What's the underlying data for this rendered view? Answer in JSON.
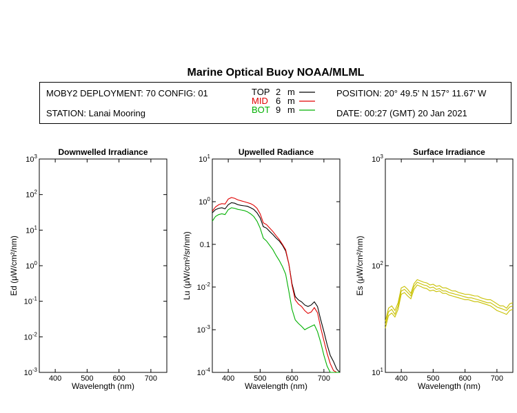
{
  "title": "Marine Optical Buoy NOAA/MLML",
  "header": {
    "deployment": "MOBY2 DEPLOYMENT: 70 CONFIG: 01",
    "station": "STATION: Lanai Mooring",
    "position": "POSITION: 20° 49.5' N   157° 11.67' W",
    "date": "DATE: 00:27 (GMT) 20 Jan 2021"
  },
  "legend": [
    {
      "label": "TOP",
      "depth": "2",
      "unit": "m",
      "color": "#000000"
    },
    {
      "label": "MID",
      "depth": "6",
      "unit": "m",
      "color": "#e00000"
    },
    {
      "label": "BOT",
      "depth": "9",
      "unit": "m",
      "color": "#00b000"
    }
  ],
  "chart_data": [
    {
      "type": "line",
      "title": "Downwelled Irradiance",
      "ylabel": "Ed  (μW/cm²/nm)",
      "xlabel": "Wavelength (nm)",
      "xlim": [
        350,
        750
      ],
      "ylim": [
        0.001,
        1000
      ],
      "yscale": "log",
      "xticks": [
        "400",
        "500",
        "600",
        "700"
      ],
      "yticks": [
        "10-3",
        "10-2",
        "10-1",
        "100",
        "101",
        "102",
        "103"
      ],
      "series": []
    },
    {
      "type": "line",
      "title": "Upwelled Radiance",
      "ylabel": "Lu  (μW/cm²/sr/nm)",
      "xlabel": "Wavelength (nm)",
      "xlim": [
        350,
        750
      ],
      "ylim": [
        0.0001,
        10
      ],
      "yscale": "log",
      "xticks": [
        "400",
        "500",
        "600",
        "700"
      ],
      "yticks": [
        "10-4",
        "10-3",
        "10-2",
        "0.1",
        "100",
        "101"
      ],
      "series": [
        {
          "name": "TOP",
          "color": "#000000",
          "x": [
            350,
            360,
            370,
            380,
            390,
            400,
            410,
            420,
            430,
            440,
            450,
            460,
            470,
            480,
            490,
            500,
            510,
            520,
            530,
            540,
            550,
            560,
            570,
            580,
            590,
            600,
            610,
            620,
            630,
            640,
            650,
            660,
            670,
            680,
            690,
            700,
            710,
            720,
            730,
            740,
            750
          ],
          "y": [
            0.55,
            0.65,
            0.7,
            0.72,
            0.68,
            0.85,
            0.95,
            0.92,
            0.85,
            0.82,
            0.8,
            0.78,
            0.72,
            0.66,
            0.55,
            0.42,
            0.26,
            0.24,
            0.2,
            0.17,
            0.14,
            0.12,
            0.095,
            0.07,
            0.035,
            0.012,
            0.006,
            0.005,
            0.0045,
            0.0038,
            0.0035,
            0.0038,
            0.0045,
            0.0035,
            0.0017,
            0.0009,
            0.00045,
            0.00025,
            0.00018,
            0.00012,
            0.0001
          ]
        },
        {
          "name": "MID",
          "color": "#e00000",
          "x": [
            350,
            360,
            370,
            380,
            390,
            400,
            410,
            420,
            430,
            440,
            450,
            460,
            470,
            480,
            490,
            500,
            510,
            520,
            530,
            540,
            550,
            560,
            570,
            580,
            590,
            600,
            610,
            620,
            630,
            640,
            650,
            660,
            670,
            680,
            690,
            700,
            710,
            720,
            730,
            740,
            750
          ],
          "y": [
            0.6,
            0.75,
            0.85,
            0.9,
            0.88,
            1.15,
            1.25,
            1.2,
            1.1,
            1.05,
            1.0,
            0.95,
            0.9,
            0.82,
            0.7,
            0.52,
            0.32,
            0.29,
            0.24,
            0.2,
            0.16,
            0.13,
            0.1,
            0.075,
            0.035,
            0.011,
            0.005,
            0.004,
            0.0035,
            0.0028,
            0.0024,
            0.0026,
            0.0033,
            0.0025,
            0.0011,
            0.00055,
            0.00028,
            0.00016,
            0.00011,
            0.0001,
            0.0001
          ]
        },
        {
          "name": "BOT",
          "color": "#00b000",
          "x": [
            350,
            360,
            370,
            380,
            390,
            400,
            410,
            420,
            430,
            440,
            450,
            460,
            470,
            480,
            490,
            500,
            510,
            520,
            530,
            540,
            550,
            560,
            570,
            580,
            590,
            600,
            610,
            620,
            630,
            640,
            650,
            660,
            670,
            680,
            690,
            700,
            710,
            720,
            730,
            740,
            750
          ],
          "y": [
            0.35,
            0.45,
            0.5,
            0.52,
            0.5,
            0.65,
            0.72,
            0.7,
            0.66,
            0.64,
            0.62,
            0.58,
            0.52,
            0.45,
            0.35,
            0.24,
            0.14,
            0.12,
            0.095,
            0.075,
            0.055,
            0.042,
            0.03,
            0.02,
            0.008,
            0.003,
            0.0017,
            0.0014,
            0.0012,
            0.001,
            0.0011,
            0.0012,
            0.0013,
            0.0009,
            0.0005,
            0.00025,
            0.00014,
            0.0001,
            0.0001,
            0.0001,
            0.0001
          ]
        }
      ]
    },
    {
      "type": "line",
      "title": "Surface Irradiance",
      "ylabel": "Es  (μW/cm²/nm)",
      "xlabel": "Wavelength (nm)",
      "xlim": [
        350,
        750
      ],
      "ylim": [
        10,
        1000
      ],
      "yscale": "log",
      "xticks": [
        "400",
        "500",
        "600",
        "700"
      ],
      "yticks": [
        "101",
        "102",
        "103"
      ],
      "series": [
        {
          "name": "",
          "color": "#c8c000",
          "x": [
            350,
            360,
            370,
            380,
            390,
            400,
            410,
            420,
            430,
            440,
            450,
            460,
            470,
            480,
            490,
            500,
            510,
            520,
            530,
            540,
            550,
            560,
            570,
            580,
            590,
            600,
            610,
            620,
            630,
            640,
            650,
            660,
            670,
            680,
            690,
            700,
            710,
            720,
            730,
            740,
            750
          ],
          "y": [
            30,
            40,
            42,
            38,
            45,
            62,
            64,
            60,
            55,
            68,
            74,
            72,
            70,
            69,
            66,
            67,
            64,
            65,
            62,
            62,
            60,
            58,
            58,
            56,
            55,
            54,
            54,
            53,
            52,
            52,
            50,
            49,
            48,
            48,
            46,
            44,
            42,
            42,
            40,
            44,
            45
          ]
        },
        {
          "name": "",
          "color": "#c8c000",
          "x": [
            350,
            360,
            370,
            380,
            390,
            400,
            410,
            420,
            430,
            440,
            450,
            460,
            470,
            480,
            490,
            500,
            510,
            520,
            530,
            540,
            550,
            560,
            570,
            580,
            590,
            600,
            610,
            620,
            630,
            640,
            650,
            660,
            670,
            680,
            690,
            700,
            710,
            720,
            730,
            740,
            750
          ],
          "y": [
            28,
            37,
            39,
            35,
            42,
            58,
            60,
            56,
            52,
            64,
            70,
            68,
            66,
            65,
            62,
            63,
            60,
            61,
            58,
            58,
            56,
            55,
            54,
            53,
            52,
            51,
            50,
            50,
            49,
            48,
            47,
            46,
            45,
            45,
            43,
            41,
            40,
            39,
            38,
            41,
            42
          ]
        },
        {
          "name": "",
          "color": "#c8c000",
          "x": [
            350,
            360,
            370,
            380,
            390,
            400,
            410,
            420,
            430,
            440,
            450,
            460,
            470,
            480,
            490,
            500,
            510,
            520,
            530,
            540,
            550,
            560,
            570,
            580,
            590,
            600,
            610,
            620,
            630,
            640,
            650,
            660,
            670,
            680,
            690,
            700,
            710,
            720,
            730,
            740,
            750
          ],
          "y": [
            26,
            34,
            36,
            33,
            39,
            54,
            56,
            52,
            49,
            60,
            66,
            64,
            62,
            61,
            58,
            59,
            57,
            58,
            55,
            55,
            53,
            52,
            51,
            50,
            49,
            48,
            48,
            47,
            46,
            46,
            45,
            44,
            43,
            42,
            40,
            38,
            37,
            36,
            35,
            38,
            39
          ]
        }
      ]
    }
  ]
}
